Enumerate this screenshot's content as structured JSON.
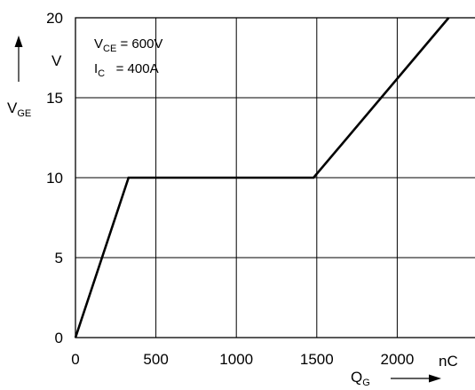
{
  "chart_data": {
    "type": "line",
    "title": "",
    "xlabel": "Q",
    "xlabel_sub": "G",
    "xunit": "nC",
    "ylabel": "V",
    "ylabel_sub": "GE",
    "yunit": "V",
    "xlim": [
      0,
      2500
    ],
    "ylim": [
      0,
      20
    ],
    "xticks": [
      0,
      500,
      1000,
      1500,
      2000
    ],
    "xtick_labels": [
      "0",
      "500",
      "1000",
      "1500",
      "2000"
    ],
    "yticks": [
      0,
      5,
      10,
      15,
      20
    ],
    "ytick_labels": [
      "0",
      "5",
      "10",
      "15",
      "20"
    ],
    "grid": true,
    "series": [
      {
        "x": [
          0,
          330,
          1480,
          2320
        ],
        "y": [
          0,
          10,
          10,
          20
        ]
      }
    ],
    "annotations": [
      {
        "main": "V",
        "sub": "CE",
        "text": " = 600V"
      },
      {
        "main": "I",
        "sub": "C",
        "text": "   = 400A"
      }
    ]
  }
}
